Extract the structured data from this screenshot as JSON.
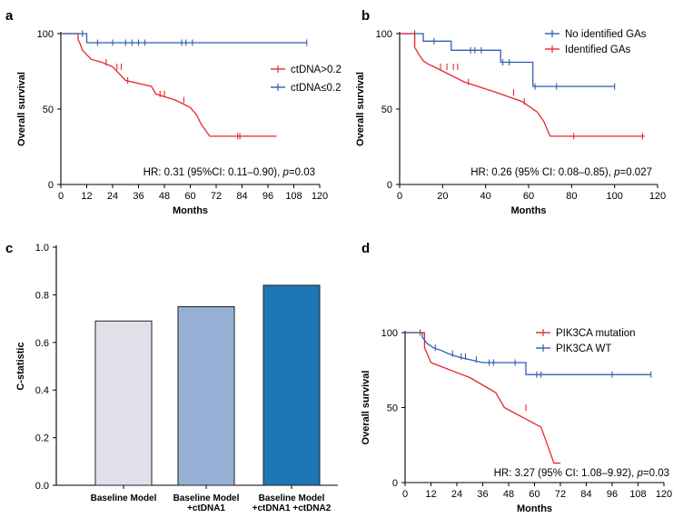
{
  "chart_data": [
    {
      "panel": "a",
      "type": "line",
      "title": "",
      "xlabel": "Months",
      "ylabel": "Overall survival",
      "xlim": [
        0,
        120
      ],
      "ylim": [
        0,
        100
      ],
      "xticks": [
        0,
        12,
        24,
        36,
        48,
        60,
        72,
        84,
        96,
        108,
        120
      ],
      "yticks": [
        0,
        50,
        100
      ],
      "annotation_prefix": "HR: 0.31 (95%CI: 0.11–0.90), ",
      "annotation_p": "p",
      "annotation_suffix": "=0.03",
      "legend_position": "right",
      "series": [
        {
          "name": "ctDNA>0.2",
          "color": "#e8262b",
          "steps": [
            [
              0,
              100
            ],
            [
              8,
              100
            ],
            [
              8,
              96
            ],
            [
              9,
              93
            ],
            [
              10,
              89
            ],
            [
              12,
              86
            ],
            [
              14,
              83
            ],
            [
              19,
              81
            ],
            [
              24,
              78
            ],
            [
              30,
              69
            ],
            [
              42,
              65
            ],
            [
              44,
              60
            ],
            [
              53,
              56
            ],
            [
              60,
              51
            ],
            [
              63,
              46
            ],
            [
              65,
              40
            ],
            [
              69,
              32
            ],
            [
              100,
              32
            ]
          ],
          "censor": [
            [
              21,
              81
            ],
            [
              26,
              78
            ],
            [
              28,
              78
            ],
            [
              31,
              69
            ],
            [
              46,
              60
            ],
            [
              48,
              60
            ],
            [
              57,
              56
            ],
            [
              82,
              32
            ],
            [
              83,
              32
            ]
          ]
        },
        {
          "name": "ctDNA≤0.2",
          "color": "#2f5fb0",
          "steps": [
            [
              0,
              100
            ],
            [
              12,
              100
            ],
            [
              12,
              94
            ],
            [
              114,
              94
            ]
          ],
          "censor": [
            [
              10,
              100
            ],
            [
              17,
              94
            ],
            [
              24,
              94
            ],
            [
              30,
              94
            ],
            [
              33,
              94
            ],
            [
              36,
              94
            ],
            [
              39,
              94
            ],
            [
              56,
              94
            ],
            [
              58,
              94
            ],
            [
              61,
              94
            ],
            [
              114,
              94
            ]
          ]
        }
      ]
    },
    {
      "panel": "b",
      "type": "line",
      "title": "",
      "xlabel": "Months",
      "ylabel": "Overall survival",
      "xlim": [
        0,
        120
      ],
      "ylim": [
        0,
        100
      ],
      "xticks": [
        0,
        20,
        40,
        60,
        80,
        100,
        120
      ],
      "yticks": [
        0,
        50,
        100
      ],
      "annotation_prefix": "HR: 0.26 (95% CI: 0.08–0.85), ",
      "annotation_p": "p",
      "annotation_suffix": "=0.027",
      "legend_position": "top-right",
      "series": [
        {
          "name": "No identified GAs",
          "color": "#2f5fb0",
          "steps": [
            [
              0,
              100
            ],
            [
              11,
              100
            ],
            [
              11,
              95
            ],
            [
              24,
              95
            ],
            [
              24,
              89
            ],
            [
              47,
              89
            ],
            [
              47,
              81
            ],
            [
              62,
              81
            ],
            [
              62,
              65
            ],
            [
              100,
              65
            ]
          ],
          "censor": [
            [
              7,
              100
            ],
            [
              16,
              95
            ],
            [
              33,
              89
            ],
            [
              35,
              89
            ],
            [
              38,
              89
            ],
            [
              48,
              81
            ],
            [
              51,
              81
            ],
            [
              63,
              65
            ],
            [
              73,
              65
            ],
            [
              100,
              65
            ]
          ]
        },
        {
          "name": "Identified GAs",
          "color": "#e8262b",
          "steps": [
            [
              0,
              100
            ],
            [
              7,
              100
            ],
            [
              7,
              91
            ],
            [
              9,
              86
            ],
            [
              11,
              82
            ],
            [
              13,
              80
            ],
            [
              16,
              78
            ],
            [
              30,
              68
            ],
            [
              45,
              61
            ],
            [
              57,
              55
            ],
            [
              64,
              48
            ],
            [
              67,
              42
            ],
            [
              70,
              32
            ],
            [
              114,
              32
            ]
          ],
          "censor": [
            [
              19,
              78
            ],
            [
              22,
              78
            ],
            [
              25,
              78
            ],
            [
              27,
              78
            ],
            [
              32,
              68
            ],
            [
              53,
              61
            ],
            [
              58,
              55
            ],
            [
              81,
              32
            ],
            [
              113,
              32
            ]
          ]
        }
      ]
    },
    {
      "panel": "c",
      "type": "bar",
      "title": "",
      "xlabel": "",
      "ylabel": "C-statistic",
      "ylim": [
        0,
        1.0
      ],
      "yticks": [
        0.0,
        0.2,
        0.4,
        0.6,
        0.8,
        1.0
      ],
      "ytick_labels": [
        "0.0",
        "0.2",
        "0.4",
        "0.6",
        "0.8",
        "1.0"
      ],
      "categories": [
        [
          "Baseline Model"
        ],
        [
          "Baseline Model",
          "+ctDNA1"
        ],
        [
          "Baseline Model",
          "+ctDNA1 +ctDNA2"
        ]
      ],
      "values": [
        0.69,
        0.75,
        0.84
      ],
      "colors": [
        "#e2dfe9",
        "#96b1d5",
        "#1d77b5"
      ]
    },
    {
      "panel": "d",
      "type": "line",
      "title": "",
      "xlabel": "Months",
      "ylabel": "Overall survival",
      "xlim": [
        0,
        120
      ],
      "ylim": [
        0,
        100
      ],
      "xticks": [
        0,
        12,
        24,
        36,
        48,
        60,
        72,
        84,
        96,
        108,
        120
      ],
      "yticks": [
        0,
        50,
        100
      ],
      "annotation_prefix": "HR: 3.27 (95% CI: 1.08–9.92), ",
      "annotation_p": "p",
      "annotation_suffix": "=0.03",
      "legend_position": "top-right",
      "series": [
        {
          "name": "PIK3CA mutation",
          "color": "#e8262b",
          "steps": [
            [
              0,
              100
            ],
            [
              9,
              100
            ],
            [
              9,
              90
            ],
            [
              12,
              80
            ],
            [
              30,
              70
            ],
            [
              42,
              60
            ],
            [
              46,
              50
            ],
            [
              63,
              37
            ],
            [
              66,
              25
            ],
            [
              69,
              13
            ],
            [
              72,
              13
            ]
          ],
          "censor": [
            [
              7,
              100
            ],
            [
              56,
              50
            ]
          ]
        },
        {
          "name": "PIK3CA WT",
          "color": "#2f5fb0",
          "steps": [
            [
              0,
              100
            ],
            [
              8,
              100
            ],
            [
              8,
              97
            ],
            [
              10,
              93
            ],
            [
              13,
              90
            ],
            [
              17,
              88
            ],
            [
              20,
              86
            ],
            [
              24,
              84
            ],
            [
              30,
              82
            ],
            [
              36,
              80
            ],
            [
              56,
              80
            ],
            [
              56,
              72
            ],
            [
              114,
              72
            ]
          ],
          "censor": [
            [
              14,
              90
            ],
            [
              22,
              86
            ],
            [
              26,
              84
            ],
            [
              28,
              84
            ],
            [
              33,
              82
            ],
            [
              39,
              80
            ],
            [
              41,
              80
            ],
            [
              51,
              80
            ],
            [
              61,
              72
            ],
            [
              63,
              72
            ],
            [
              96,
              72
            ],
            [
              114,
              72
            ]
          ]
        }
      ]
    }
  ]
}
